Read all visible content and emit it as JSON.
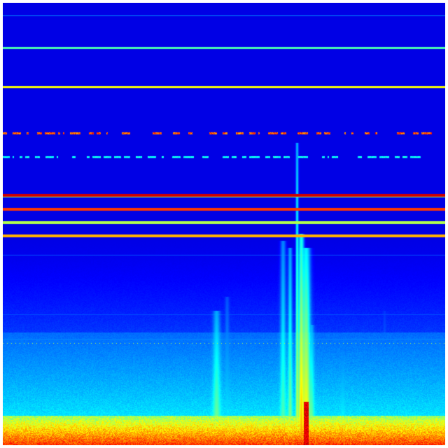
{
  "image": {
    "kind": "spectrogram",
    "colormap": "jet",
    "colors": {
      "background": "#00007f",
      "low": "#0000ff",
      "mid": "#00ffff",
      "high": "#ffff00",
      "peak": "#ff0000"
    }
  }
}
